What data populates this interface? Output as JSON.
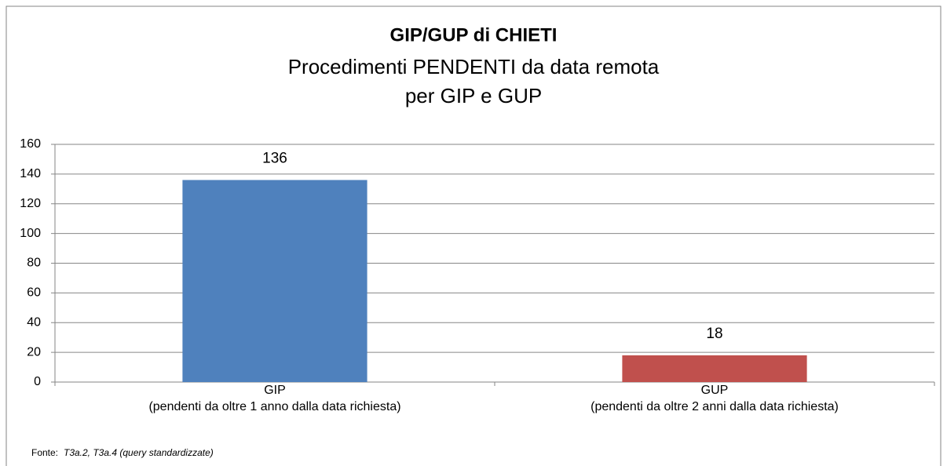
{
  "chart_data": {
    "type": "bar",
    "title": "GIP/GUP di CHIETI",
    "subtitle": [
      "Procedimenti PENDENTI da data remota",
      "per GIP e GUP"
    ],
    "categories": [
      [
        "GIP",
        "(pendenti da oltre 1 anno dalla data richiesta)"
      ],
      [
        "GUP",
        "(pendenti da oltre 2 anni dalla data richiesta)"
      ]
    ],
    "values": [
      136,
      18
    ],
    "colors": [
      "#4f81bd",
      "#c0504d"
    ],
    "ylim": [
      0,
      160
    ],
    "yticks": [
      0,
      20,
      40,
      60,
      80,
      100,
      120,
      140,
      160
    ],
    "grid": true,
    "source_label": "Fonte:",
    "source": "T3a.2, T3a.4 (query standardizzate)"
  }
}
